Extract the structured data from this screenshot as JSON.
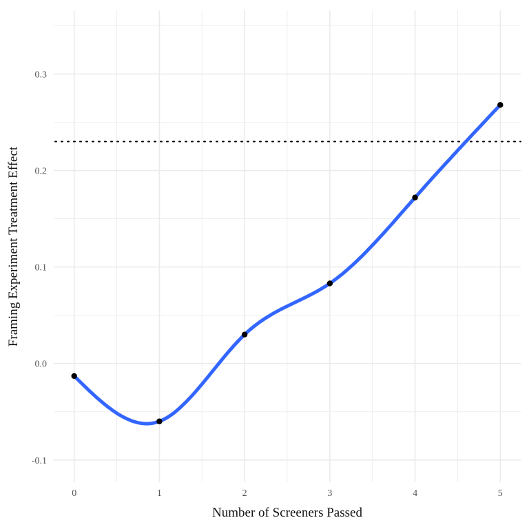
{
  "chart_data": {
    "type": "line",
    "title": "",
    "xlabel": "Number of Screeners Passed",
    "ylabel": "Framing Experiment Treatment Effect",
    "x": [
      0,
      1,
      2,
      3,
      4,
      5
    ],
    "values": [
      -0.013,
      -0.06,
      0.03,
      0.083,
      0.172,
      0.268
    ],
    "reference_line": 0.23,
    "xlim": [
      -0.24,
      5.24
    ],
    "ylim": [
      -0.123,
      0.366
    ],
    "x_ticks": [
      "0",
      "1",
      "2",
      "3",
      "4",
      "5"
    ],
    "y_ticks": [
      "-0.1",
      "0.0",
      "0.1",
      "0.2",
      "0.3"
    ],
    "grid": true,
    "colors": {
      "line": "#3366ff",
      "points": "#000000",
      "reference": "#000000",
      "grid": "#ebebeb"
    }
  }
}
